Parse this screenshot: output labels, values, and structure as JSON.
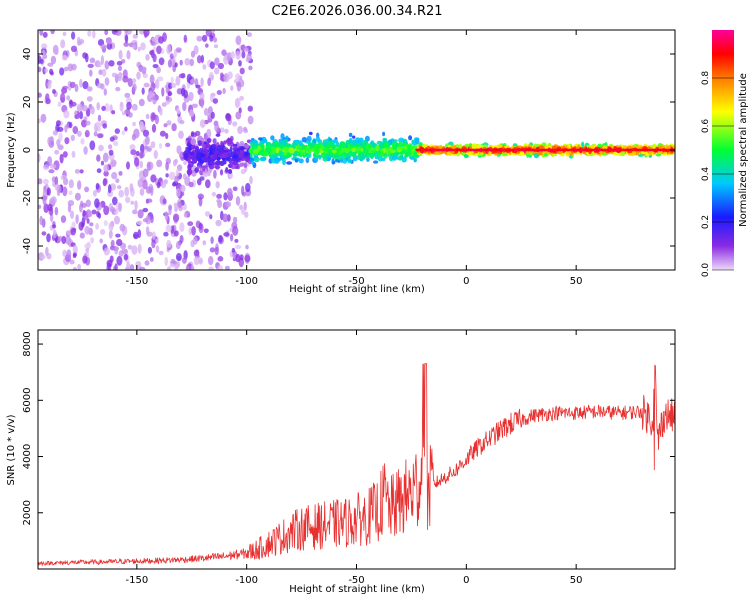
{
  "figure_title": "C2E6.2026.036.00.34.R21",
  "chart_data": [
    {
      "type": "heatmap",
      "title": "C2E6.2026.036.00.34.R21",
      "xlabel": "Height of straight line (km)",
      "ylabel": "Frequency (Hz)",
      "xlim": [
        -195,
        95
      ],
      "ylim": [
        -50,
        50
      ],
      "x_ticks": [
        -150,
        -100,
        -50,
        0,
        50
      ],
      "y_ticks": [
        -40,
        -20,
        0,
        20,
        40
      ],
      "colorbar": {
        "label": "Normalized spectral amplitude",
        "range": [
          0.0,
          1.0
        ],
        "ticks": [
          0.0,
          0.2,
          0.4,
          0.6,
          0.8
        ],
        "tick_labels": [
          "0.0",
          "0.2",
          "0.4",
          "0.6",
          "0.8"
        ]
      },
      "regions": [
        {
          "x": [
            -195,
            -98
          ],
          "frequency_spread_hz": [
            -50,
            50
          ],
          "amplitude": 0.1,
          "description": "diffuse noise"
        },
        {
          "x": [
            -128,
            -98
          ],
          "frequency_spread_hz": [
            -12,
            8
          ],
          "amplitude": 0.15
        },
        {
          "x": [
            -98,
            -22
          ],
          "frequency_spread_hz": [
            -8,
            8
          ],
          "amplitude": 0.5
        },
        {
          "x": [
            -22,
            95
          ],
          "frequency_spread_hz": [
            -3,
            3
          ],
          "amplitude": 0.85
        }
      ]
    },
    {
      "type": "line",
      "xlabel": "Height of straight line (km)",
      "ylabel": "SNR (10 * v/v)",
      "xlim": [
        -195,
        95
      ],
      "ylim": [
        0,
        8500
      ],
      "x_ticks": [
        -150,
        -100,
        -50,
        0,
        50
      ],
      "y_ticks": [
        2000,
        4000,
        6000,
        8000
      ],
      "color": "#e83030",
      "series": [
        {
          "name": "SNR",
          "x": [
            -195,
            -180,
            -165,
            -150,
            -140,
            -130,
            -120,
            -110,
            -100,
            -95,
            -90,
            -85,
            -80,
            -75,
            -70,
            -65,
            -60,
            -55,
            -50,
            -45,
            -40,
            -37,
            -35,
            -30,
            -25,
            -22,
            -20,
            -18,
            -15,
            -10,
            -5,
            0,
            5,
            10,
            15,
            20,
            25,
            30,
            40,
            50,
            60,
            70,
            80,
            85,
            86,
            87,
            90,
            95
          ],
          "y": [
            200,
            230,
            250,
            280,
            300,
            330,
            380,
            450,
            560,
            700,
            900,
            1100,
            1300,
            1450,
            1500,
            1550,
            1600,
            1650,
            1750,
            1850,
            2100,
            2600,
            2100,
            2400,
            2700,
            3000,
            3500,
            2700,
            3000,
            3250,
            3500,
            3900,
            4300,
            4600,
            4900,
            5150,
            5300,
            5450,
            5550,
            5550,
            5600,
            5550,
            5600,
            5300,
            7300,
            4500,
            5500,
            5400
          ]
        }
      ]
    }
  ]
}
